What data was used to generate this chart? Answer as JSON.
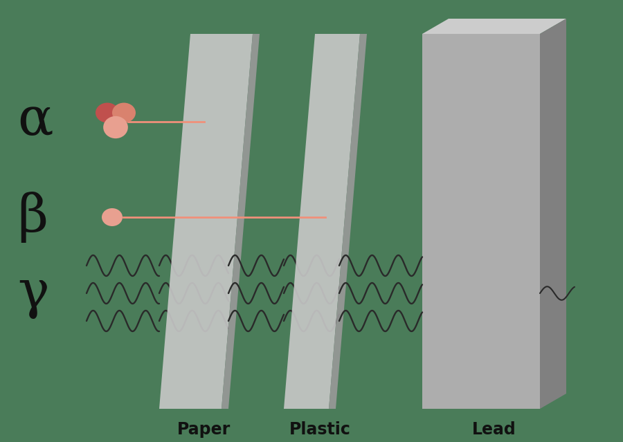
{
  "bg_color": "#4a7c59",
  "panel_light": "#c8c8c8",
  "panel_mid": "#b8b8b8",
  "panel_dark": "#999999",
  "lead_front": "#adadad",
  "lead_right": "#808080",
  "lead_top": "#cccccc",
  "alpha_col1": "#c0504d",
  "alpha_col2": "#d9826e",
  "alpha_col3": "#e8a090",
  "beta_color": "#e8a090",
  "arrow_color": "#f0907a",
  "wave_color": "#2a2a2a",
  "text_color": "#111111",
  "labels": [
    "Paper",
    "Plastic",
    "Lead"
  ],
  "greek_labels": [
    "α",
    "β",
    "γ"
  ],
  "label_fontsize": 17,
  "greek_fontsize": 55
}
